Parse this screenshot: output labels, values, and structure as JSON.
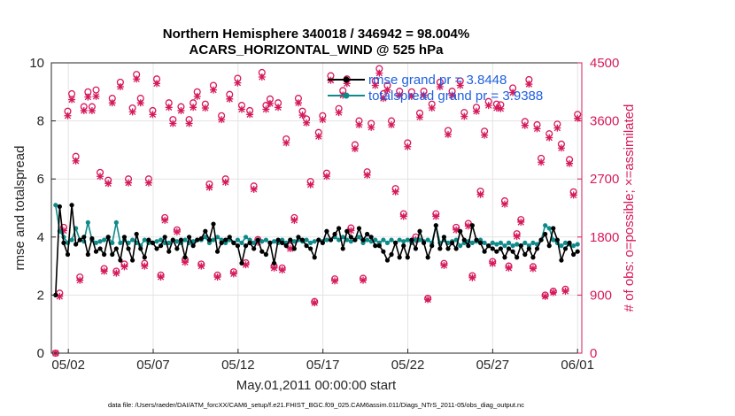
{
  "chart_data": {
    "type": "line",
    "title_line1": "Northern Hemisphere 340018 / 346942 = 98.004%",
    "title_line2": "ACARS_HORIZONTAL_WIND @ 525 hPa",
    "xlabel": "May.01,2011 00:00:00 start",
    "ylabel_left": "rmse and totalspread",
    "ylabel_right": "# of obs: o=possible; ×=assimilated",
    "footer": "data file: /Users/raeder/DAI/ATM_forcXX/CAM6_setup/f.e21.FHIST_BGC.f09_025.CAM6assim.011/Diags_NTrS_2011-05/obs_diag_output.nc",
    "x_ticks": [
      "05/02",
      "05/07",
      "05/12",
      "05/17",
      "05/22",
      "05/27",
      "06/01"
    ],
    "x_tick_days": [
      1,
      6,
      11,
      16,
      21,
      26,
      31
    ],
    "xlim_days": [
      0,
      31.25
    ],
    "ylim_left": [
      0,
      10
    ],
    "y_ticks_left": [
      "0",
      "2",
      "4",
      "6",
      "8",
      "10"
    ],
    "ylim_right": [
      0,
      4500
    ],
    "y_ticks_right": [
      "0",
      "900",
      "1800",
      "2700",
      "3600",
      "4500"
    ],
    "grid": true,
    "legend_position": "top-right",
    "colors": {
      "rmse": "#000000",
      "totalspread": "#0f8a8a",
      "obs": "#d6195c",
      "legend_text": "#1f5fe0",
      "right_axis": "#d6195c"
    },
    "series": [
      {
        "name": "rmse grand pr = 3.8448",
        "values": [
          2.0,
          5.05,
          3.8,
          3.4,
          5.1,
          3.75,
          3.9,
          4.0,
          3.4,
          3.95,
          3.5,
          3.6,
          3.4,
          4.0,
          3.4,
          3.6,
          3.2,
          4.0,
          3.6,
          3.2,
          4.1,
          3.6,
          3.3,
          3.9,
          3.8,
          3.6,
          3.7,
          4.0,
          3.5,
          3.9,
          3.6,
          3.9,
          3.3,
          4.0,
          3.7,
          3.9,
          3.95,
          4.2,
          3.9,
          4.45,
          3.5,
          3.8,
          3.9,
          4.0,
          3.8,
          3.7,
          3.1,
          3.7,
          3.8,
          3.6,
          3.9,
          3.5,
          3.4,
          3.8,
          3.1,
          3.9,
          3.8,
          3.7,
          3.9,
          3.6,
          4.0,
          3.9,
          3.7,
          3.6,
          3.3,
          3.9,
          3.8,
          4.2,
          3.9,
          4.1,
          4.3,
          3.6,
          4.2,
          4.0,
          3.9,
          4.3,
          3.9,
          4.1,
          4.0,
          3.7,
          3.7,
          3.5,
          3.2,
          3.4,
          3.8,
          3.3,
          3.7,
          3.3,
          3.9,
          3.6,
          4.2,
          3.8,
          3.3,
          3.7,
          4.4,
          3.6,
          4.0,
          3.6,
          3.8,
          3.6,
          4.2,
          3.9,
          3.7,
          4.4,
          3.9,
          3.8,
          3.5,
          3.7,
          3.6,
          3.5,
          3.6,
          3.3,
          3.6,
          3.5,
          3.3,
          3.7,
          3.4,
          3.6,
          3.3,
          3.6,
          3.9,
          4.1,
          3.7,
          4.3,
          3.9,
          3.2,
          3.6,
          3.8,
          3.4,
          3.5
        ]
      },
      {
        "name": "totalspread grand pr = 3.9388",
        "values": [
          5.1,
          4.2,
          4.0,
          3.8,
          3.9,
          4.3,
          3.9,
          3.85,
          4.5,
          3.9,
          3.8,
          3.85,
          3.9,
          4.0,
          3.8,
          4.5,
          3.8,
          3.9,
          3.8,
          3.9,
          3.8,
          3.7,
          3.9,
          3.8,
          3.8,
          3.85,
          3.9,
          3.8,
          3.8,
          3.9,
          3.85,
          3.8,
          3.9,
          3.8,
          3.85,
          3.9,
          3.9,
          4.0,
          3.8,
          3.9,
          4.0,
          3.9,
          3.8,
          3.9,
          3.8,
          3.9,
          3.8,
          4.0,
          3.9,
          3.8,
          3.9,
          3.85,
          3.9,
          3.8,
          3.85,
          3.8,
          3.9,
          3.8,
          3.9,
          3.85,
          3.9,
          3.85,
          3.9,
          3.8,
          3.85,
          3.9,
          3.85,
          3.9,
          3.9,
          4.0,
          3.9,
          4.0,
          3.9,
          3.85,
          3.9,
          4.0,
          3.8,
          3.9,
          3.85,
          3.9,
          3.8,
          3.9,
          3.8,
          3.9,
          3.8,
          3.9,
          3.85,
          3.9,
          3.8,
          3.9,
          3.9,
          3.85,
          3.9,
          3.8,
          4.4,
          3.8,
          3.9,
          3.8,
          3.85,
          3.9,
          3.7,
          3.8,
          3.85,
          3.8,
          3.85,
          3.9,
          3.8,
          3.7,
          3.8,
          3.75,
          3.8,
          3.7,
          3.8,
          3.7,
          3.75,
          3.7,
          3.8,
          3.7,
          3.8,
          3.75,
          3.9,
          4.4,
          4.3,
          3.9,
          3.8,
          3.7,
          3.8,
          3.75,
          3.7,
          3.75
        ]
      },
      {
        "name": "possible",
        "values": [
          0,
          930,
          1950,
          3750,
          4020,
          3050,
          1180,
          3820,
          4050,
          3820,
          4080,
          2800,
          1310,
          2680,
          3950,
          1270,
          4200,
          1380,
          2700,
          3800,
          4320,
          3950,
          1390,
          2700,
          3760,
          4250,
          1210,
          2100,
          3880,
          3620,
          1910,
          3820,
          1450,
          3620,
          3880,
          4050,
          1380,
          3860,
          2620,
          4150,
          1210,
          3680,
          2700,
          4010,
          1260,
          4260,
          3840,
          1400,
          3760,
          2590,
          1760,
          4350,
          3840,
          3940,
          1350,
          3880,
          1320,
          3320,
          1660,
          2100,
          3950,
          3750,
          3630,
          2660,
          800,
          3420,
          3680,
          2790,
          4300,
          1150,
          3790,
          4070,
          4250,
          1940,
          3230,
          3600,
          1160,
          2810,
          3560,
          4220,
          4410,
          4020,
          4150,
          3600,
          2550,
          4060,
          2160,
          3260,
          4050,
          1800,
          3720,
          4060,
          850,
          3860,
          2160,
          4200,
          1390,
          3450,
          4060,
          1950,
          4220,
          3730,
          2010,
          1200,
          3810,
          2510,
          3440,
          3900,
          1420,
          3860,
          3850,
          2360,
          1350,
          4110,
          1850,
          2070,
          3590,
          4240,
          1340,
          3540,
          3020,
          900,
          3400,
          960,
          3550,
          3240,
          990,
          3000,
          2500,
          3700
        ]
      },
      {
        "name": "assimilated",
        "values": [
          0,
          880,
          1900,
          3680,
          3930,
          2980,
          1130,
          3760,
          3970,
          3760,
          3980,
          2740,
          1270,
          2630,
          3880,
          1240,
          4130,
          1340,
          2640,
          3740,
          4250,
          3880,
          1350,
          2640,
          3700,
          4180,
          1180,
          2060,
          3810,
          3560,
          1880,
          3760,
          1410,
          3560,
          3810,
          3980,
          1350,
          3800,
          2570,
          4080,
          1180,
          3620,
          2650,
          3940,
          1230,
          4190,
          3780,
          1370,
          3700,
          2540,
          1720,
          4280,
          3780,
          3870,
          1320,
          3810,
          1290,
          3260,
          1620,
          2060,
          3880,
          3690,
          3570,
          2610,
          780,
          3360,
          3620,
          2740,
          4230,
          1120,
          3730,
          4000,
          4180,
          1900,
          3170,
          3540,
          1130,
          2760,
          3500,
          4150,
          4340,
          3950,
          4080,
          3540,
          2500,
          4000,
          2120,
          3200,
          3980,
          1760,
          3660,
          4000,
          830,
          3800,
          2120,
          4130,
          1360,
          3390,
          4000,
          1910,
          4150,
          3670,
          1970,
          1170,
          3750,
          2460,
          3380,
          3840,
          1390,
          3800,
          3790,
          2310,
          1320,
          4040,
          1810,
          2030,
          3530,
          4170,
          1310,
          3480,
          2960,
          880,
          3340,
          940,
          3490,
          3180,
          960,
          2940,
          2450,
          3640
        ]
      }
    ]
  }
}
